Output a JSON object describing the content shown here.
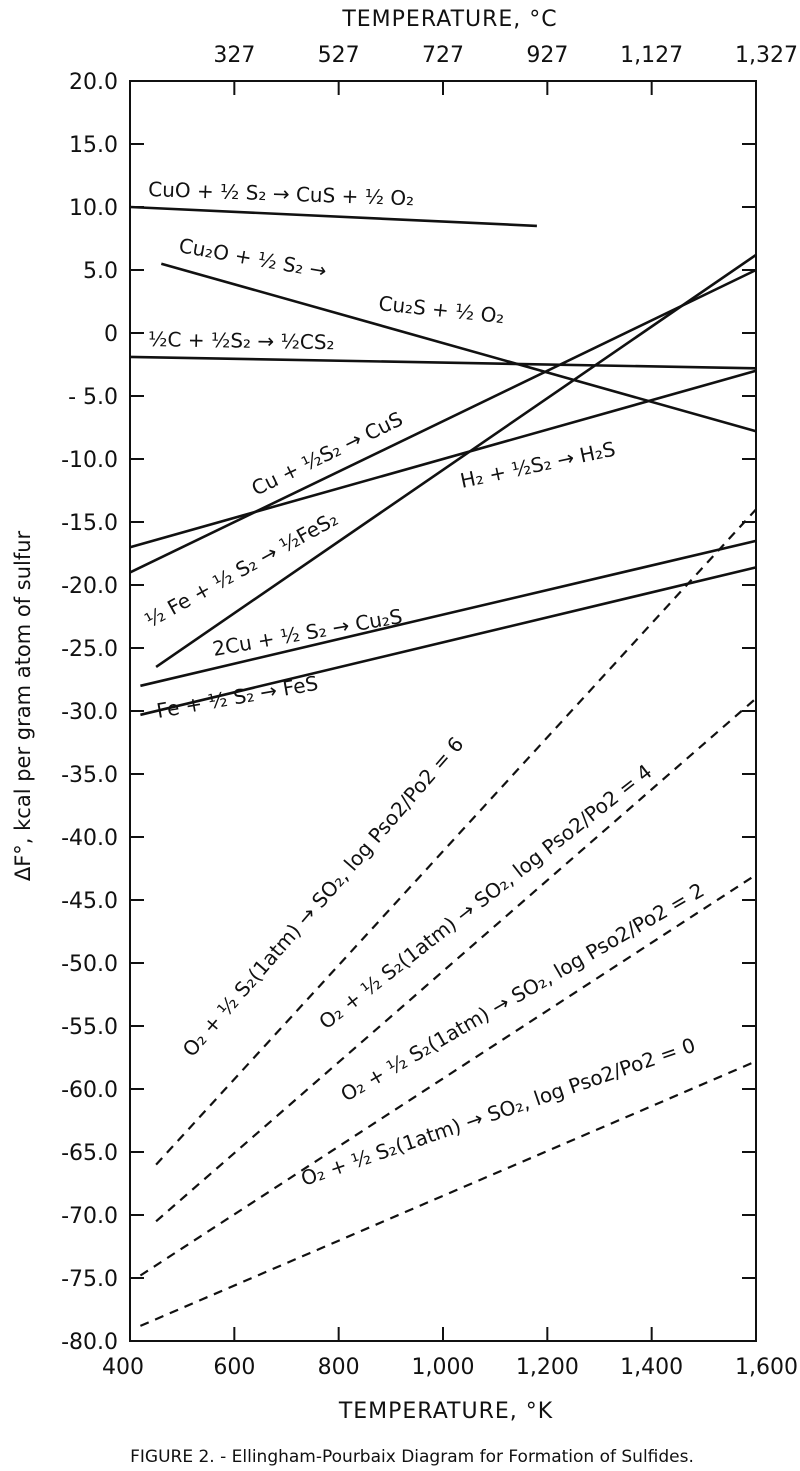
{
  "chart_data": {
    "type": "line",
    "top_axis_title": "TEMPERATURE, °C",
    "top_ticks": [
      {
        "x": 600,
        "label": "327"
      },
      {
        "x": 800,
        "label": "527"
      },
      {
        "x": 1000,
        "label": "727"
      },
      {
        "x": 1200,
        "label": "927"
      },
      {
        "x": 1400,
        "label": "1,127"
      },
      {
        "x": 1600,
        "label": "1,327"
      }
    ],
    "xlabel": "TEMPERATURE, °K",
    "ylabel": "ΔF°, kcal per gram atom of sulfur",
    "xlim": [
      400,
      1600
    ],
    "ylim": [
      -80,
      20
    ],
    "x_ticks": [
      {
        "v": 400,
        "label": "400"
      },
      {
        "v": 600,
        "label": "600"
      },
      {
        "v": 800,
        "label": "800"
      },
      {
        "v": 1000,
        "label": "1,000"
      },
      {
        "v": 1200,
        "label": "1,200"
      },
      {
        "v": 1400,
        "label": "1,400"
      },
      {
        "v": 1600,
        "label": "1,600"
      }
    ],
    "y_ticks": [
      {
        "v": 20,
        "label": "20.0"
      },
      {
        "v": 15,
        "label": "15.0"
      },
      {
        "v": 10,
        "label": "10.0"
      },
      {
        "v": 5,
        "label": "5.0"
      },
      {
        "v": 0,
        "label": "0"
      },
      {
        "v": -5,
        "label": "- 5.0"
      },
      {
        "v": -10,
        "label": "-10.0"
      },
      {
        "v": -15,
        "label": "-15.0"
      },
      {
        "v": -20,
        "label": "-20.0"
      },
      {
        "v": -25,
        "label": "-25.0"
      },
      {
        "v": -30,
        "label": "-30.0"
      },
      {
        "v": -35,
        "label": "-35.0"
      },
      {
        "v": -40,
        "label": "-40.0"
      },
      {
        "v": -45,
        "label": "-45.0"
      },
      {
        "v": -50,
        "label": "-50.0"
      },
      {
        "v": -55,
        "label": "-55.0"
      },
      {
        "v": -60,
        "label": "-60.0"
      },
      {
        "v": -65,
        "label": "-65.0"
      },
      {
        "v": -70,
        "label": "-70.0"
      },
      {
        "v": -75,
        "label": "-75.0"
      },
      {
        "v": -80,
        "label": "-80.0"
      }
    ],
    "grid": false,
    "series": [
      {
        "key": "cuo",
        "style": "solid",
        "x": [
          400,
          1180
        ],
        "y": [
          10.0,
          8.5
        ],
        "label": "CuO + 1/2 S2 → CuS + 1/2 O2"
      },
      {
        "key": "cu2o",
        "style": "solid",
        "x": [
          460,
          1600
        ],
        "y": [
          5.5,
          -7.8
        ],
        "label": "Cu2O + 1/2 S2 → Cu2S + 1/2 O2"
      },
      {
        "key": "cs2",
        "style": "solid",
        "x": [
          400,
          1600
        ],
        "y": [
          -1.9,
          -2.8
        ],
        "label": "1/2 C + 1/2 S2 → 1/2 CS2"
      },
      {
        "key": "cus",
        "style": "solid",
        "x": [
          400,
          1600
        ],
        "y": [
          -19.0,
          5.0
        ],
        "label": "Cu + 1/2 S2 → CuS"
      },
      {
        "key": "h2s",
        "style": "solid",
        "x": [
          400,
          1600
        ],
        "y": [
          -17.0,
          -3.0
        ],
        "label": "H2 + 1/2 S2 → H2S"
      },
      {
        "key": "fes2",
        "style": "solid",
        "x": [
          450,
          1600
        ],
        "y": [
          -26.5,
          6.2
        ],
        "label": "1/2 Fe + 1/2 S2 → 1/2 FeS2"
      },
      {
        "key": "cu2s",
        "style": "solid",
        "x": [
          420,
          1600
        ],
        "y": [
          -28.0,
          -16.5
        ],
        "label": "2Cu + 1/2 S2 → Cu2S"
      },
      {
        "key": "fes",
        "style": "solid",
        "x": [
          420,
          1600
        ],
        "y": [
          -30.3,
          -18.6
        ],
        "label": "Fe + 1/2 S2 → FeS"
      },
      {
        "key": "so2_6",
        "style": "dashed",
        "x": [
          450,
          1600
        ],
        "y": [
          -66.0,
          -14.0
        ],
        "label": "O2 + 1/2 S2(1atm) → SO2, log Pso2/Po2 = 6"
      },
      {
        "key": "so2_4",
        "style": "dashed",
        "x": [
          450,
          1600
        ],
        "y": [
          -70.5,
          -29.0
        ],
        "label": "O2 + 1/2 S2(1atm) → SO2, log Pso2/Po2 = 4"
      },
      {
        "key": "so2_2",
        "style": "dashed",
        "x": [
          420,
          1600
        ],
        "y": [
          -74.8,
          -43.0
        ],
        "label": "O2 + 1/2 S2(1atm) → SO2, log Pso2/Po2 = 2"
      },
      {
        "key": "so2_0",
        "style": "dashed",
        "x": [
          420,
          1600
        ],
        "y": [
          -78.8,
          -57.8
        ],
        "label": "O2 + 1/2 S2(1atm) → SO2, log Pso2/Po2 = 0"
      }
    ]
  },
  "labels": {
    "cuo": "CuO + ½ S₂ → CuS + ½ O₂",
    "cu2o_a": "Cu₂O + ½ S₂ →",
    "cu2o_b": "Cu₂S + ½ O₂",
    "cs2": "½C + ½S₂ → ½CS₂",
    "cus": "Cu + ½S₂ → CuS",
    "h2s": "H₂ + ½S₂ → H₂S",
    "fes2": "½ Fe + ½ S₂ → ½FeS₂",
    "cu2s": "2Cu + ½ S₂ → Cu₂S",
    "fes": "Fe + ½ S₂ → FeS",
    "so2_6": "O₂ + ½ S₂(1atm) → SO₂, log Pso2/Po2 = 6",
    "so2_4": "O₂ + ½ S₂(1atm) → SO₂, log Pso2/Po2 = 4",
    "so2_2": "O₂ + ½ S₂(1atm) → SO₂, log Pso2/Po2 = 2",
    "so2_0": "O₂ + ½ S₂(1atm) → SO₂, log Pso2/Po2 = 0"
  },
  "caption": "FIGURE 2. - Ellingham-Pourbaix Diagram for Formation of Sulfides."
}
